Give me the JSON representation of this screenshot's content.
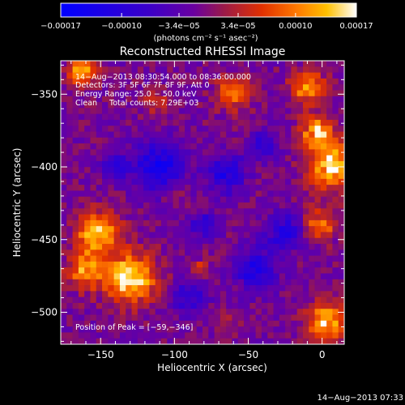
{
  "chart_data": {
    "type": "heatmap",
    "title": "Reconstructed RHESSI Image",
    "xlabel": "Heliocentric X (arcsec)",
    "ylabel": "Heliocentric Y (arcsec)",
    "xlim": [
      -177,
      15
    ],
    "ylim": [
      -522,
      -327
    ],
    "xticks": [
      -150,
      -100,
      -50,
      0
    ],
    "xtick_labels": [
      "−150",
      "−100",
      "−50",
      "0"
    ],
    "yticks": [
      -350,
      -400,
      -450,
      -500
    ],
    "ytick_labels": [
      "−350",
      "−400",
      "−450",
      "−500"
    ],
    "colorbar": {
      "range": [
        -0.00017,
        0.00017
      ],
      "ticks": [
        -0.00017,
        -0.0001,
        -3.4e-05,
        3.4e-05,
        0.0001,
        0.00017
      ],
      "tick_labels": [
        "−0.00017",
        "−0.00010",
        "−3.4e−05",
        "3.4e−05",
        "0.00010",
        "0.00017"
      ],
      "units_text": "(photons cm⁻² s⁻¹ asec⁻²)",
      "colors": [
        "#0000ff",
        "#3c00c8",
        "#6a00a0",
        "#9a1a4a",
        "#e13000",
        "#ff7a00",
        "#ffc000",
        "#ffffff"
      ]
    },
    "annotations": [
      "14−Aug−2013 08:30:54.000 to 08:36:00.000",
      "Detectors: 3F 5F 6F 7F 8F 9F, Att 0",
      "Energy Range: 25.0 − 50.0 keV",
      "Clean     Total counts: 7.29E+03"
    ],
    "peak_label": "Position of Peak = [−59,−346]",
    "peak": [
      -59,
      -346
    ],
    "hotspots": [
      {
        "x": -130,
        "y": -476,
        "sigma": 12,
        "value": 0.00017
      },
      {
        "x": -152,
        "y": -445,
        "sigma": 10,
        "value": 0.00015
      },
      {
        "x": -160,
        "y": -470,
        "sigma": 9,
        "value": 0.00012
      },
      {
        "x": -163,
        "y": -335,
        "sigma": 7,
        "value": 0.00013
      },
      {
        "x": 7,
        "y": -400,
        "sigma": 11,
        "value": 0.00016
      },
      {
        "x": -3,
        "y": -376,
        "sigma": 8,
        "value": 0.00013
      },
      {
        "x": -10,
        "y": -345,
        "sigma": 8,
        "value": 0.00012
      },
      {
        "x": 3,
        "y": -507,
        "sigma": 9,
        "value": 0.00015
      },
      {
        "x": -2,
        "y": -440,
        "sigma": 8,
        "value": 0.0001
      },
      {
        "x": -60,
        "y": -349,
        "sigma": 8,
        "value": 0.00011
      },
      {
        "x": -112,
        "y": -356,
        "sigma": 6,
        "value": 6e-05
      },
      {
        "x": -100,
        "y": -420,
        "sigma": 5,
        "value": 5e-05
      },
      {
        "x": -82,
        "y": -470,
        "sigma": 5,
        "value": 5e-05
      },
      {
        "x": -65,
        "y": -505,
        "sigma": 5,
        "value": 4e-05
      }
    ],
    "coldspots": [
      {
        "x": -110,
        "y": -400,
        "sigma": 12,
        "value": -0.00012
      },
      {
        "x": -45,
        "y": -470,
        "sigma": 10,
        "value": -0.0001
      },
      {
        "x": -65,
        "y": -405,
        "sigma": 9,
        "value": -0.0001
      },
      {
        "x": -25,
        "y": -445,
        "sigma": 9,
        "value": -0.0001
      },
      {
        "x": -40,
        "y": -385,
        "sigma": 7,
        "value": -8e-05
      },
      {
        "x": -80,
        "y": -440,
        "sigma": 6,
        "value": -9e-05
      },
      {
        "x": -90,
        "y": -490,
        "sigma": 8,
        "value": -8e-05
      },
      {
        "x": -140,
        "y": -400,
        "sigma": 7,
        "value": -7e-05
      }
    ]
  },
  "timestamp": "14−Aug−2013 07:33"
}
